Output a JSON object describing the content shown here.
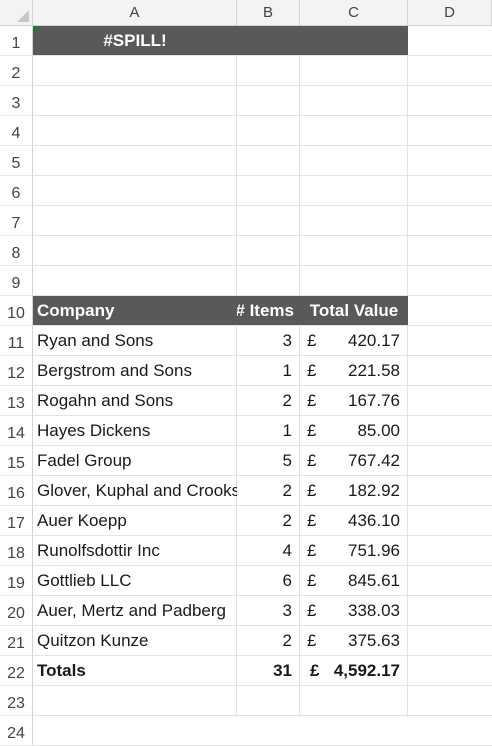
{
  "columns": [
    "A",
    "B",
    "C",
    "D"
  ],
  "rows": [
    "1",
    "2",
    "3",
    "4",
    "5",
    "6",
    "7",
    "8",
    "9",
    "10",
    "11",
    "12",
    "13",
    "14",
    "15",
    "16",
    "17",
    "18",
    "19",
    "20",
    "21",
    "22",
    "23",
    "24"
  ],
  "spill_error": "#SPILL!",
  "table": {
    "headers": {
      "company": "Company",
      "items": "# Items",
      "value": "Total Value"
    },
    "currency": "£",
    "rows": [
      {
        "company": "Ryan and Sons",
        "items": "3",
        "value": "420.17"
      },
      {
        "company": "Bergstrom and Sons",
        "items": "1",
        "value": "221.58"
      },
      {
        "company": "Rogahn and Sons",
        "items": "2",
        "value": "167.76"
      },
      {
        "company": "Hayes Dickens",
        "items": "1",
        "value": "85.00"
      },
      {
        "company": "Fadel Group",
        "items": "5",
        "value": "767.42"
      },
      {
        "company": "Glover, Kuphal and Crooks",
        "items": "2",
        "value": "182.92"
      },
      {
        "company": "Auer Koepp",
        "items": "2",
        "value": "436.10"
      },
      {
        "company": "Runolfsdottir Inc",
        "items": "4",
        "value": "751.96"
      },
      {
        "company": "Gottlieb LLC",
        "items": "6",
        "value": "845.61"
      },
      {
        "company": "Auer, Mertz and Padberg",
        "items": "3",
        "value": "338.03"
      },
      {
        "company": "Quitzon Kunze",
        "items": "2",
        "value": "375.63"
      }
    ],
    "totals": {
      "label": "Totals",
      "items": "31",
      "value": "4,592.17"
    }
  },
  "colors": {
    "header_fill": "#595959",
    "header_text": "#ffffff",
    "grid": "#e3e3e3",
    "selection": "#1f7a3a"
  }
}
